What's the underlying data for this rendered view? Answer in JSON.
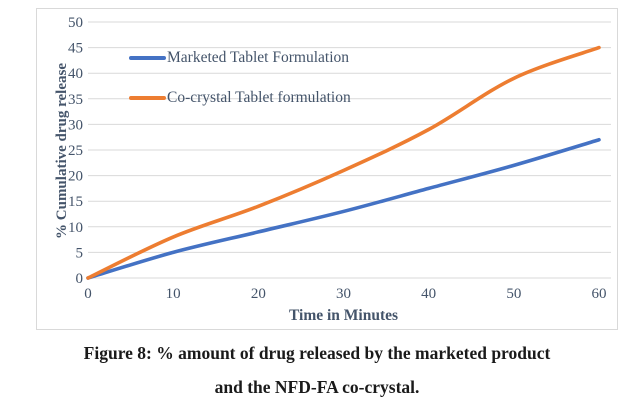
{
  "figure": {
    "caption_line1": "Figure 8: % amount of drug released by the marketed product",
    "caption_line2": "and the NFD-FA co-crystal."
  },
  "chart_data": {
    "type": "line",
    "x": [
      0,
      10,
      20,
      30,
      40,
      50,
      60
    ],
    "series": [
      {
        "name": "Marketed Tablet Formulation",
        "color": "#4472C4",
        "values": [
          0,
          5,
          9,
          13,
          17.5,
          22,
          27
        ]
      },
      {
        "name": "Co-crystal Tablet formulation",
        "color": "#ED7D31",
        "values": [
          0,
          8,
          14,
          21,
          29,
          39,
          45
        ]
      }
    ],
    "xlabel": "Time in Minutes",
    "ylabel": "% Cumulative drug release",
    "xlim": [
      0,
      60
    ],
    "ylim": [
      0,
      50
    ],
    "x_ticks": [
      0,
      10,
      20,
      30,
      40,
      50,
      60
    ],
    "y_ticks": [
      0,
      5,
      10,
      15,
      20,
      25,
      30,
      35,
      40,
      45,
      50
    ],
    "grid": "horizontal",
    "legend_position": "inside-top-left",
    "colors": {
      "axis_text": "#44546A",
      "gridline": "#D9D9D9",
      "plot_border": "#D9D9D9",
      "background": "#FFFFFF",
      "caption_text": "#1A1A1A"
    }
  }
}
